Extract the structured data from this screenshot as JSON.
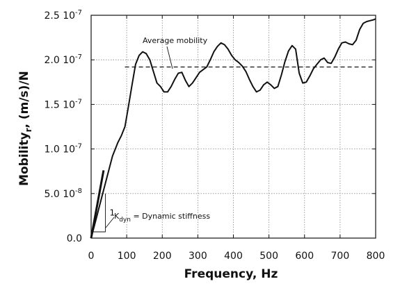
{
  "chart_data": {
    "type": "line",
    "xlabel": "Frequency, Hz",
    "ylabel": "Mobility, (m/s)/N",
    "ylabel_sub": "r",
    "ylabel_main": "Mobility",
    "ylabel_rest": ", (m/s)/N",
    "xlim": [
      0,
      800
    ],
    "ylim": [
      0,
      2.5e-07
    ],
    "grid": true,
    "x_ticks": [
      0,
      100,
      200,
      300,
      400,
      500,
      600,
      700,
      800
    ],
    "x_tick_labels": [
      "0",
      "100",
      "200",
      "300",
      "400",
      "500",
      "600",
      "700",
      "800"
    ],
    "y_ticks": [
      0,
      5e-08,
      1e-07,
      1.5e-07,
      2e-07,
      2.5e-07
    ],
    "y_tick_labels": [
      {
        "mant": "0.0",
        "exp": ""
      },
      {
        "mant": "5.0 10",
        "exp": "-8"
      },
      {
        "mant": "1.0 10",
        "exp": "-7"
      },
      {
        "mant": "1.5 10",
        "exp": "-7"
      },
      {
        "mant": "2.0 10",
        "exp": "-7"
      },
      {
        "mant": "2.5 10",
        "exp": "-7"
      }
    ],
    "series": [
      {
        "x": [
          0,
          15,
          30,
          45,
          60,
          75,
          85,
          95,
          105,
          115,
          125,
          135,
          145,
          155,
          165,
          175,
          185,
          195,
          205,
          215,
          225,
          235,
          245,
          255,
          265,
          275,
          285,
          295,
          305,
          315,
          325,
          335,
          345,
          355,
          365,
          375,
          385,
          395,
          405,
          415,
          425,
          435,
          445,
          455,
          465,
          475,
          485,
          495,
          505,
          515,
          525,
          535,
          545,
          555,
          565,
          575,
          585,
          595,
          605,
          615,
          625,
          635,
          645,
          655,
          665,
          675,
          685,
          695,
          705,
          715,
          725,
          735,
          745,
          755,
          765,
          775,
          785,
          795,
          800
        ],
        "y": [
          0,
          2.3e-08,
          4.6e-08,
          6.9e-08,
          9.2e-08,
          1.07e-07,
          1.15e-07,
          1.25e-07,
          1.48e-07,
          1.72e-07,
          1.95e-07,
          2.05e-07,
          2.09e-07,
          2.07e-07,
          2e-07,
          1.87e-07,
          1.74e-07,
          1.7e-07,
          1.64e-07,
          1.64e-07,
          1.7e-07,
          1.78e-07,
          1.85e-07,
          1.86e-07,
          1.77e-07,
          1.7e-07,
          1.74e-07,
          1.8e-07,
          1.86e-07,
          1.89e-07,
          1.92e-07,
          2e-07,
          2.09e-07,
          2.15e-07,
          2.19e-07,
          2.17e-07,
          2.12e-07,
          2.05e-07,
          2e-07,
          1.97e-07,
          1.93e-07,
          1.87e-07,
          1.78e-07,
          1.7e-07,
          1.64e-07,
          1.66e-07,
          1.72e-07,
          1.75e-07,
          1.72e-07,
          1.68e-07,
          1.7e-07,
          1.83e-07,
          1.98e-07,
          2.1e-07,
          2.16e-07,
          2.12e-07,
          1.85e-07,
          1.74e-07,
          1.75e-07,
          1.82e-07,
          1.9e-07,
          1.95e-07,
          2e-07,
          2.02e-07,
          1.97e-07,
          1.96e-07,
          2.03e-07,
          2.12e-07,
          2.19e-07,
          2.2e-07,
          2.18e-07,
          2.17e-07,
          2.22e-07,
          2.34e-07,
          2.41e-07,
          2.43e-07,
          2.44e-07,
          2.45e-07,
          2.46e-07
        ]
      }
    ],
    "reference_lines": {
      "average_y": 1.92e-07,
      "average_x_range": [
        95,
        800
      ]
    },
    "slope_line": {
      "x": [
        0,
        35
      ],
      "y": [
        0,
        7.6e-08
      ]
    },
    "slope_triangle": {
      "x0": 5,
      "x1": 40,
      "y_base": 7e-09,
      "y_top": 5e-08
    },
    "annotations": {
      "average_mobility": "Average mobility",
      "slope_one": "1",
      "kdyn_main": "K",
      "kdyn_sub": "dyn",
      "kdyn_rest": " = Dynamic stiffness"
    }
  }
}
